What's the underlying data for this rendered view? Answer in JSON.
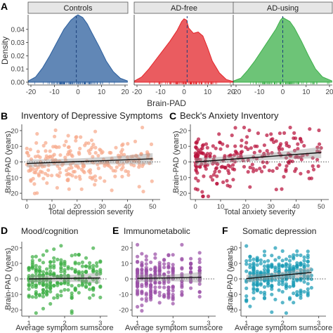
{
  "colors": {
    "controls": "#2c5f9e",
    "ad_free": "#e3262b",
    "ad_using": "#3cb04a",
    "depressive": "#f6a98a",
    "anxiety": "#b8123c",
    "mood": "#3fae45",
    "immuno": "#9a4fa6",
    "somatic": "#1a9bb5",
    "strip": "#e6e6e6",
    "axis": "#333333"
  },
  "chart_data": [
    {
      "panel": "A",
      "type": "area",
      "ylabel": "Density",
      "xlabel": "Brain-PAD",
      "xlim": [
        -20,
        20
      ],
      "ylim": [
        0,
        0.05
      ],
      "xticks": [
        "-20",
        "-10",
        "0",
        "10",
        "20"
      ],
      "yticks": [
        "0.00",
        "0.01",
        "0.02",
        "0.03",
        "0.04"
      ],
      "series": [
        {
          "name": "Controls",
          "color_key": "controls",
          "mean": -0.7,
          "x": [
            -21,
            -18,
            -15,
            -12,
            -9,
            -6,
            -3,
            -1,
            0,
            2,
            4,
            6,
            9,
            12,
            15,
            18,
            21
          ],
          "y": [
            0.001,
            0.004,
            0.011,
            0.02,
            0.03,
            0.04,
            0.047,
            0.05,
            0.051,
            0.049,
            0.044,
            0.037,
            0.027,
            0.016,
            0.008,
            0.003,
            0.001
          ]
        },
        {
          "name": "AD-free",
          "color_key": "ad_free",
          "mean": 1.3,
          "x": [
            -21,
            -18,
            -15,
            -12,
            -9,
            -6,
            -3,
            -1,
            0,
            1,
            2,
            4,
            6,
            8,
            10,
            12,
            15,
            18,
            21
          ],
          "y": [
            0.001,
            0.004,
            0.01,
            0.017,
            0.024,
            0.031,
            0.039,
            0.046,
            0.048,
            0.047,
            0.041,
            0.037,
            0.038,
            0.035,
            0.026,
            0.016,
            0.007,
            0.002,
            0.0005
          ]
        },
        {
          "name": "AD-using",
          "color_key": "ad_using",
          "mean": 0,
          "x": [
            -21,
            -18,
            -15,
            -12,
            -9,
            -6,
            -3,
            -1,
            0,
            1,
            3,
            5,
            8,
            11,
            14,
            17,
            21
          ],
          "y": [
            0.001,
            0.003,
            0.009,
            0.016,
            0.024,
            0.032,
            0.04,
            0.047,
            0.049,
            0.048,
            0.046,
            0.041,
            0.031,
            0.02,
            0.01,
            0.004,
            0.001
          ]
        }
      ]
    },
    {
      "panel": "B",
      "type": "scatter",
      "title": "Inventory of Depressive Symptoms",
      "xlabel": "Total depression severity",
      "ylabel": "Brain-PAD (years)",
      "xlim": [
        -2,
        53
      ],
      "ylim": [
        -24,
        24
      ],
      "xticks": [
        0,
        10,
        20,
        30,
        40,
        50
      ],
      "yticks": [
        -20,
        -10,
        0,
        10,
        20
      ],
      "n": 240,
      "fit": [
        -1.0,
        0.06
      ],
      "color_key": "depressive"
    },
    {
      "panel": "C",
      "type": "scatter",
      "title": "Beck's Anxiety Inventory",
      "xlabel": "Total anxiety severity",
      "ylabel": "Brain-PAD (years)",
      "xlim": [
        -2,
        53
      ],
      "ylim": [
        -24,
        24
      ],
      "xticks": [
        0,
        10,
        20,
        30,
        40,
        50
      ],
      "yticks": [
        -20,
        -10,
        0,
        10,
        20
      ],
      "n": 240,
      "fit": [
        0.0,
        0.12
      ],
      "color_key": "anxiety"
    },
    {
      "panel": "D",
      "type": "scatter",
      "title": "Mood/cognition",
      "xlabel": "Average symptom sumscore",
      "ylabel": "Brain-PAD (years)",
      "xlim": [
        0.8,
        3.2
      ],
      "ylim": [
        -24,
        24
      ],
      "xticks": [
        1,
        2,
        3
      ],
      "yticks": [
        -20,
        -10,
        0,
        10,
        20
      ],
      "n": 260,
      "fit": [
        -0.3,
        0.3
      ],
      "color_key": "mood"
    },
    {
      "panel": "E",
      "type": "scatter",
      "title": "Immunometabolic",
      "xlabel": "Average symptom sumscore",
      "ylabel": "Brain-PAD (years)",
      "xlim": [
        0.85,
        3.2
      ],
      "ylim": [
        -24,
        24
      ],
      "xticks": [
        1,
        2,
        3
      ],
      "yticks": [
        -20,
        -10,
        0,
        10,
        20
      ],
      "n": 260,
      "fit": [
        0.0,
        0.35
      ],
      "color_key": "immuno"
    },
    {
      "panel": "F",
      "type": "scatter",
      "title": "Somatic depression",
      "xlabel": "Average symptom sumscore",
      "ylabel": "Brain-PAD (years)",
      "xlim": [
        0.85,
        3.2
      ],
      "ylim": [
        -24,
        24
      ],
      "xticks": [
        1,
        2,
        3
      ],
      "yticks": [
        -20,
        -10,
        0,
        10,
        20
      ],
      "n": 280,
      "fit": [
        -2.0,
        2.2
      ],
      "color_key": "somatic"
    }
  ],
  "panel_labels": [
    "A",
    "B",
    "C",
    "D",
    "E",
    "F"
  ]
}
